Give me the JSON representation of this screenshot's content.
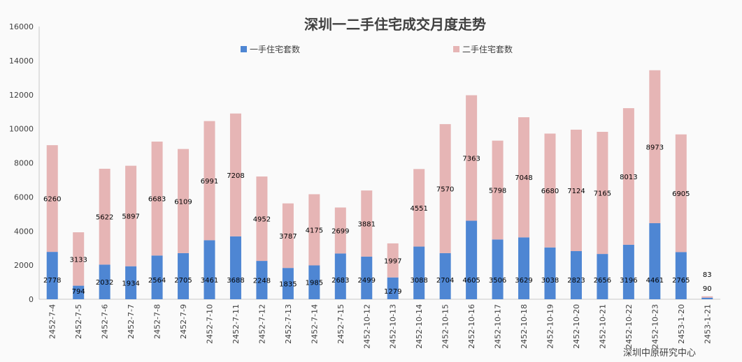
{
  "chart_data": {
    "type": "bar",
    "stacked": true,
    "title": "深圳一二手住宅成交月度走势",
    "xlabel": "",
    "ylabel": "",
    "ylim": [
      0,
      16000
    ],
    "yticks": [
      "0",
      "2000",
      "4000",
      "6000",
      "8000",
      "10000",
      "12000",
      "14000",
      "16000"
    ],
    "categories": [
      "2452-7-4",
      "2452-7-5",
      "2452-7-6",
      "2452-7-7",
      "2452-7-8",
      "2452-7-9",
      "2452-7-10",
      "2452-7-11",
      "2452-7-12",
      "2452-7-13",
      "2452-7-14",
      "2452-7-15",
      "2452-10-12",
      "2452-10-13",
      "2452-10-14",
      "2452-10-15",
      "2452-10-16",
      "2452-10-17",
      "2452-10-18",
      "2452-10-19",
      "2452-10-20",
      "2452-10-21",
      "2452-10-22",
      "2452-10-23",
      "2453-1-20",
      "2453-1-21"
    ],
    "series": [
      {
        "name": "一手住宅套数",
        "color": "#4e86d3",
        "values": [
          2778,
          794,
          2032,
          1934,
          2564,
          2705,
          3461,
          3688,
          2248,
          1835,
          1985,
          2683,
          2499,
          1279,
          3088,
          2704,
          4605,
          3506,
          3629,
          3038,
          2823,
          2656,
          3196,
          4461,
          2765,
          90
        ]
      },
      {
        "name": "二手住宅套数",
        "color": "#e6b5b5",
        "values": [
          6260,
          3133,
          5622,
          5897,
          6683,
          6109,
          6991,
          7208,
          4952,
          3787,
          4175,
          2699,
          3881,
          1997,
          4551,
          7570,
          7363,
          5798,
          7048,
          6680,
          7124,
          7165,
          8013,
          8973,
          6905,
          83
        ]
      }
    ],
    "legend_position": "top",
    "grid": false,
    "annotation": "深圳中原研究中心"
  }
}
